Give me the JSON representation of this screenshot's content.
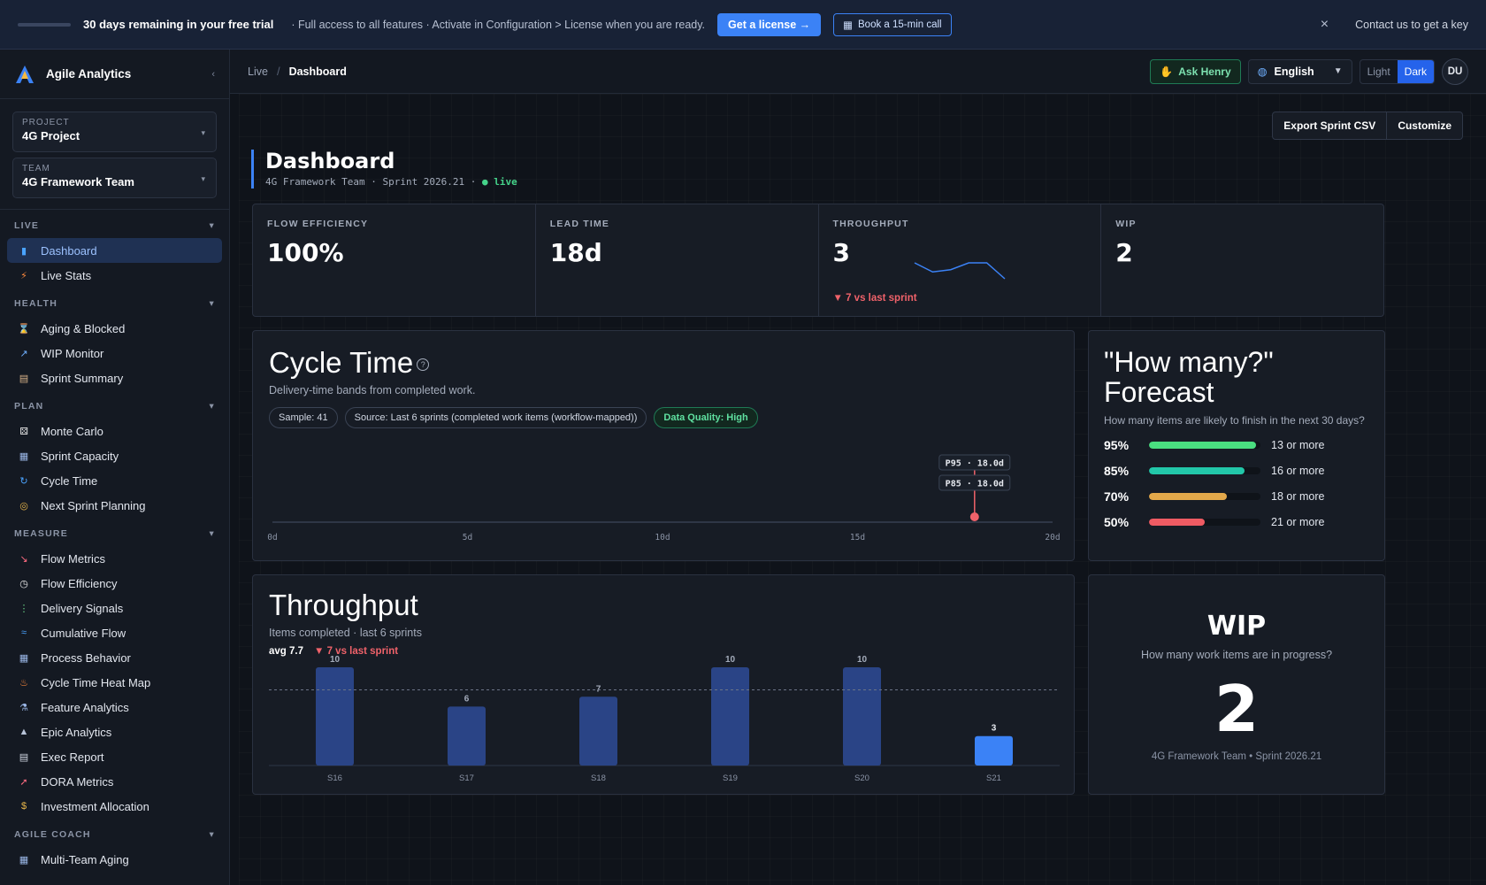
{
  "banner": {
    "title": "30 days remaining in your free trial",
    "description": "· Full access to all features · Activate in Configuration > License when you are ready.",
    "license_button": "Get a license →",
    "call_button": "Book a 15-min call",
    "contact": "Contact us to get a key"
  },
  "app": {
    "name": "Agile Analytics"
  },
  "selectors": {
    "project_label": "PROJECT",
    "project_value": "4G Project",
    "team_label": "TEAM",
    "team_value": "4G Framework Team"
  },
  "sidebar": {
    "sections": [
      {
        "title": "LIVE",
        "items": [
          {
            "label": "Dashboard",
            "icon": "bar-chart-icon",
            "glyph": "▮",
            "color": "#4aa3ff",
            "active": true
          },
          {
            "label": "Live Stats",
            "icon": "lightning-icon",
            "glyph": "⚡",
            "color": "#ff8a3d"
          }
        ]
      },
      {
        "title": "HEALTH",
        "items": [
          {
            "label": "Aging & Blocked",
            "icon": "hourglass-icon",
            "glyph": "⌛",
            "color": "#e9b64a"
          },
          {
            "label": "WIP Monitor",
            "icon": "trend-chart-icon",
            "glyph": "↗",
            "color": "#6fb0ff"
          },
          {
            "label": "Sprint Summary",
            "icon": "clipboard-icon",
            "glyph": "▤",
            "color": "#d9b48a"
          }
        ]
      },
      {
        "title": "PLAN",
        "items": [
          {
            "label": "Monte Carlo",
            "icon": "dice-icon",
            "glyph": "⚄",
            "color": "#e8e8e8"
          },
          {
            "label": "Sprint Capacity",
            "icon": "calendar-icon",
            "glyph": "▦",
            "color": "#9ab6e6"
          },
          {
            "label": "Cycle Time",
            "icon": "refresh-icon",
            "glyph": "↻",
            "color": "#4aa3ff"
          },
          {
            "label": "Next Sprint Planning",
            "icon": "compass-icon",
            "glyph": "◎",
            "color": "#e9b64a"
          }
        ]
      },
      {
        "title": "MEASURE",
        "items": [
          {
            "label": "Flow Metrics",
            "icon": "line-chart-icon",
            "glyph": "↘",
            "color": "#ff6b81"
          },
          {
            "label": "Flow Efficiency",
            "icon": "stopwatch-icon",
            "glyph": "◷",
            "color": "#e8e8e8"
          },
          {
            "label": "Delivery Signals",
            "icon": "traffic-light-icon",
            "glyph": "⋮",
            "color": "#6fdc8c"
          },
          {
            "label": "Cumulative Flow",
            "icon": "wave-icon",
            "glyph": "≈",
            "color": "#4aa3ff"
          },
          {
            "label": "Process Behavior",
            "icon": "grid-icon",
            "glyph": "▦",
            "color": "#9ab6e6"
          },
          {
            "label": "Cycle Time Heat Map",
            "icon": "fire-icon",
            "glyph": "♨",
            "color": "#ff8a3d"
          },
          {
            "label": "Feature Analytics",
            "icon": "microscope-icon",
            "glyph": "⚗",
            "color": "#9ab6e6"
          },
          {
            "label": "Epic Analytics",
            "icon": "mountain-icon",
            "glyph": "▲",
            "color": "#b8c4d8"
          },
          {
            "label": "Exec Report",
            "icon": "document-icon",
            "glyph": "▤",
            "color": "#d0d6e2"
          },
          {
            "label": "DORA Metrics",
            "icon": "rocket-icon",
            "glyph": "➚",
            "color": "#ff6b81"
          },
          {
            "label": "Investment Allocation",
            "icon": "money-bag-icon",
            "glyph": "$",
            "color": "#e9b64a"
          }
        ]
      },
      {
        "title": "AGILE COACH",
        "items": [
          {
            "label": "Multi-Team Aging",
            "icon": "calendar-icon",
            "glyph": "▦",
            "color": "#9ab6e6"
          }
        ]
      }
    ]
  },
  "topbar": {
    "crumb_root": "Live",
    "crumb_sep": "/",
    "crumb_current": "Dashboard",
    "henry": "Ask Henry",
    "language": "English",
    "theme_light": "Light",
    "theme_dark": "Dark",
    "avatar": "DU"
  },
  "actions": {
    "export": "Export Sprint CSV",
    "customize": "Customize"
  },
  "page": {
    "title": "Dashboard",
    "subtitle": "4G Framework Team · Sprint 2026.21 ·",
    "live": "● live"
  },
  "kpis": [
    {
      "label": "FLOW EFFICIENCY",
      "value": "100%"
    },
    {
      "label": "LEAD TIME",
      "value": "18d"
    },
    {
      "label": "THROUGHPUT",
      "value": "3",
      "delta": "▼ 7 vs last sprint",
      "sparkline": [
        10,
        6,
        7,
        10,
        10,
        3
      ]
    },
    {
      "label": "WIP",
      "value": "2"
    }
  ],
  "cycle_time": {
    "title": "Cycle Time",
    "help": "?",
    "description": "Delivery-time bands from completed work.",
    "pills": [
      "Sample: 41",
      "Source: Last 6 sprints (completed work items (workflow-mapped))",
      "Data Quality: High"
    ],
    "axis_ticks": [
      "0d",
      "5d",
      "10d",
      "15d",
      "20d"
    ],
    "x_max": 20,
    "marker_value": 18.0,
    "labels": [
      "P95 · 18.0d",
      "P85 · 18.0d"
    ]
  },
  "forecast": {
    "title": "\"How many?\" Forecast",
    "description": "How many items are likely to finish in the next 30 days?",
    "rows": [
      {
        "pct": "95%",
        "fill": 0.96,
        "color": "#4ade80",
        "text": "13 or more"
      },
      {
        "pct": "85%",
        "fill": 0.86,
        "color": "#22c7a9",
        "text": "16 or more"
      },
      {
        "pct": "70%",
        "fill": 0.7,
        "color": "#e3a84a",
        "text": "18 or more"
      },
      {
        "pct": "50%",
        "fill": 0.5,
        "color": "#ef5b63",
        "text": "21 or more"
      }
    ]
  },
  "throughput": {
    "title": "Throughput",
    "description": "Items completed · last 6 sprints",
    "avg": "avg 7.7",
    "delta": "▼ 7 vs last sprint"
  },
  "wip": {
    "title": "WIP",
    "question": "How many work items are in progress?",
    "value": "2",
    "footer": "4G Framework Team • Sprint 2026.21"
  },
  "chart_data": {
    "type": "bar",
    "title": "Throughput",
    "categories": [
      "S16",
      "S17",
      "S18",
      "S19",
      "S20",
      "S21"
    ],
    "values": [
      10,
      6,
      7,
      10,
      10,
      3
    ],
    "average": 7.7,
    "ylim": [
      0,
      10
    ],
    "colors": {
      "bar": "#2a4486",
      "current": "#3b82f6"
    }
  }
}
